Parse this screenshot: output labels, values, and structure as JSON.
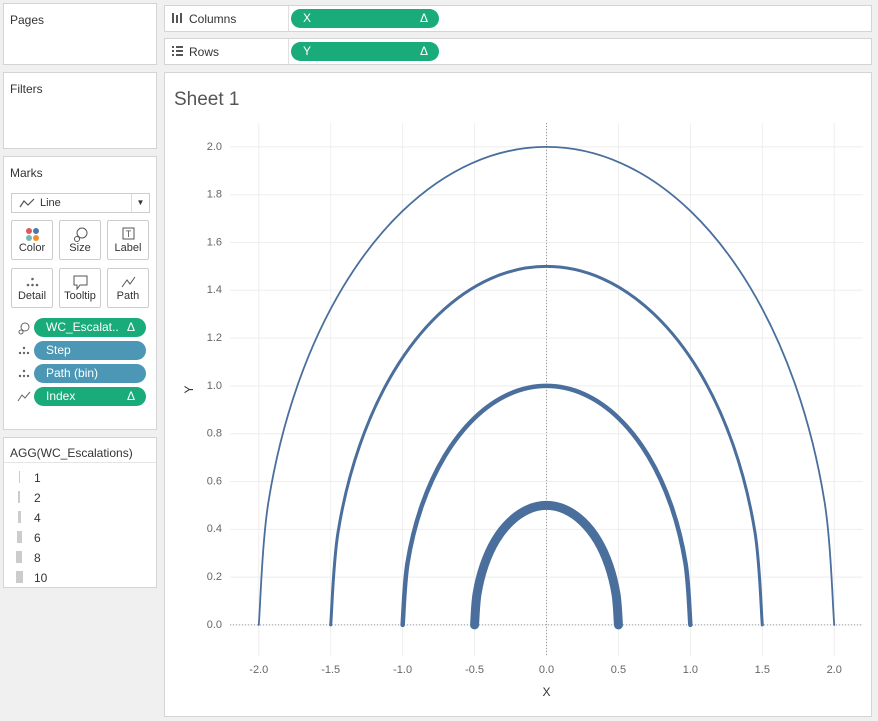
{
  "shelves": {
    "pages": "Pages",
    "filters": "Filters",
    "columns": {
      "label": "Columns",
      "pill": "X",
      "delta": "Δ"
    },
    "rows": {
      "label": "Rows",
      "pill": "Y",
      "delta": "Δ"
    }
  },
  "marks": {
    "title": "Marks",
    "mark_type": "Line",
    "buttons": [
      "Color",
      "Size",
      "Label",
      "Detail",
      "Tooltip",
      "Path"
    ],
    "pills": [
      {
        "text": "WC_Escalat..",
        "delta": "Δ",
        "color": "#1aab7b"
      },
      {
        "text": "Step",
        "color": "#4b97b5"
      },
      {
        "text": "Path (bin)",
        "color": "#4b97b5"
      },
      {
        "text": "Index",
        "delta": "Δ",
        "color": "#1aab7b"
      }
    ]
  },
  "legend": {
    "title": "AGG(WC_Escalations)",
    "items": [
      1,
      2,
      4,
      6,
      8,
      10
    ]
  },
  "chart_data": {
    "type": "line",
    "title": "Sheet 1",
    "x_label": "X",
    "y_label": "Y",
    "color": "#4a6f9c",
    "grid": true,
    "xlim": [
      -2.2,
      2.2
    ],
    "ylim": [
      -0.13,
      2.1
    ],
    "xticks": [
      {
        "value": -2,
        "label": "-2.0"
      },
      {
        "value": -1.5,
        "label": "-1.5"
      },
      {
        "value": -1,
        "label": "-1.0"
      },
      {
        "value": -0.5,
        "label": "-0.5"
      },
      {
        "value": 0,
        "label": "0.0"
      },
      {
        "value": 0.5,
        "label": "0.5"
      },
      {
        "value": 1,
        "label": "1.0"
      },
      {
        "value": 1.5,
        "label": "1.5"
      },
      {
        "value": 2,
        "label": "2.0"
      }
    ],
    "yticks": [
      {
        "value": 0,
        "label": "0.0"
      },
      {
        "value": 0.2,
        "label": "0.2"
      },
      {
        "value": 0.4,
        "label": "0.4"
      },
      {
        "value": 0.6,
        "label": "0.6"
      },
      {
        "value": 0.8,
        "label": "0.8"
      },
      {
        "value": 1,
        "label": "1.0"
      },
      {
        "value": 1.2,
        "label": "1.2"
      },
      {
        "value": 1.4,
        "label": "1.4"
      },
      {
        "value": 1.6,
        "label": "1.6"
      },
      {
        "value": 1.8,
        "label": "1.8"
      },
      {
        "value": 2,
        "label": "2.0"
      }
    ],
    "series": [
      {
        "x": [
          -2,
          -1.932,
          -1.732,
          -1.414,
          -1,
          -0.518,
          0,
          0.518,
          1,
          1.414,
          1.732,
          1.932,
          2
        ],
        "values": [
          0,
          0.518,
          1,
          1.414,
          1.732,
          1.932,
          2,
          1.932,
          1.732,
          1.414,
          1,
          0.518,
          0
        ]
      },
      {
        "x": [
          -1.5,
          -1.449,
          -1.299,
          -1.061,
          -0.75,
          -0.388,
          0,
          0.388,
          0.75,
          1.061,
          1.299,
          1.449,
          1.5
        ],
        "values": [
          0,
          0.388,
          0.75,
          1.061,
          1.299,
          1.449,
          1.5,
          1.449,
          1.299,
          1.061,
          0.75,
          0.388,
          0
        ]
      },
      {
        "x": [
          -1,
          -0.966,
          -0.866,
          -0.707,
          -0.5,
          -0.259,
          0,
          0.259,
          0.5,
          0.707,
          0.866,
          0.966,
          1
        ],
        "values": [
          0,
          0.259,
          0.5,
          0.707,
          0.866,
          0.966,
          1,
          0.966,
          0.866,
          0.707,
          0.5,
          0.259,
          0
        ]
      },
      {
        "x": [
          -0.5,
          -0.483,
          -0.433,
          -0.354,
          -0.25,
          -0.129,
          0,
          0.129,
          0.25,
          0.354,
          0.433,
          0.483,
          0.5
        ],
        "values": [
          0,
          0.129,
          0.25,
          0.354,
          0.433,
          0.483,
          0.5,
          0.483,
          0.433,
          0.354,
          0.25,
          0.129,
          0
        ]
      }
    ]
  }
}
